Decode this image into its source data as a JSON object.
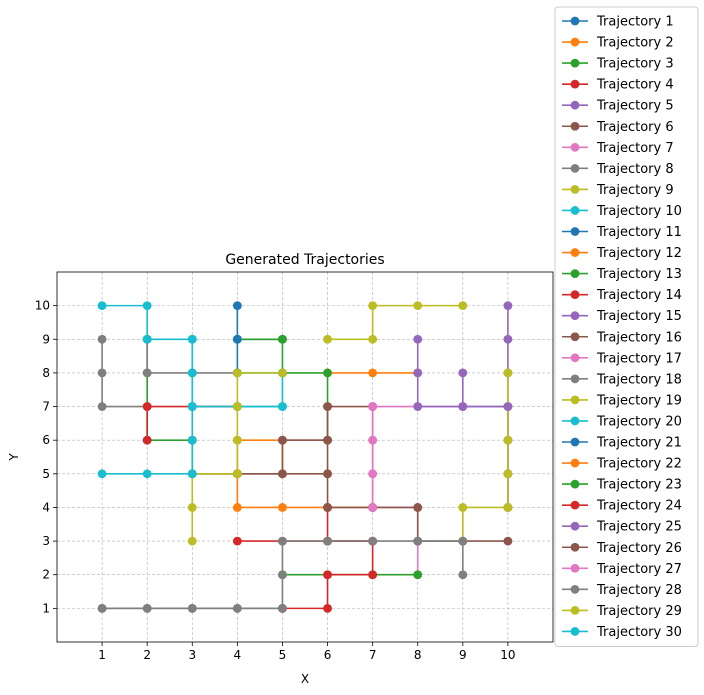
{
  "chart_data": {
    "type": "line",
    "title": "Generated Trajectories",
    "xlabel": "X",
    "ylabel": "Y",
    "xlim": [
      0,
      11
    ],
    "ylim": [
      0,
      11
    ],
    "xticks": [
      1,
      2,
      3,
      4,
      5,
      6,
      7,
      8,
      9,
      10
    ],
    "yticks": [
      1,
      2,
      3,
      4,
      5,
      6,
      7,
      8,
      9,
      10
    ],
    "xtick_labels": [
      "1",
      "2",
      "3",
      "4",
      "5",
      "6",
      "7",
      "8",
      "9",
      "10"
    ],
    "ytick_labels": [
      "1",
      "2",
      "3",
      "4",
      "5",
      "6",
      "7",
      "8",
      "9",
      "10"
    ],
    "grid": true,
    "grid_style": "dashed",
    "legend_position": "outside right",
    "series": [
      {
        "name": "Trajectory 1",
        "color": "#1f77b4",
        "points": [
          [
            5,
            1
          ],
          [
            4,
            1
          ],
          [
            3,
            1
          ],
          [
            2,
            1
          ],
          [
            1,
            1
          ]
        ]
      },
      {
        "name": "Trajectory 2",
        "color": "#ff7f0e",
        "points": [
          [
            4,
            5
          ],
          [
            4,
            6
          ],
          [
            5,
            6
          ],
          [
            5,
            5
          ]
        ]
      },
      {
        "name": "Trajectory 3",
        "color": "#2ca02c",
        "points": [
          [
            2,
            9
          ],
          [
            2,
            8
          ],
          [
            2,
            7
          ],
          [
            2,
            6
          ],
          [
            3,
            6
          ]
        ]
      },
      {
        "name": "Trajectory 4",
        "color": "#d62728",
        "points": [
          [
            4,
            3
          ],
          [
            5,
            3
          ],
          [
            6,
            3
          ],
          [
            7,
            3
          ]
        ]
      },
      {
        "name": "Trajectory 5",
        "color": "#9467bd",
        "points": [
          [
            9,
            8
          ],
          [
            9,
            7
          ],
          [
            10,
            7
          ],
          [
            10,
            6
          ],
          [
            10,
            5
          ],
          [
            10,
            4
          ]
        ]
      },
      {
        "name": "Trajectory 6",
        "color": "#8c564b",
        "points": [
          [
            3,
            5
          ],
          [
            4,
            5
          ],
          [
            5,
            5
          ],
          [
            6,
            5
          ]
        ]
      },
      {
        "name": "Trajectory 7",
        "color": "#e377c2",
        "points": [
          [
            7,
            7
          ],
          [
            8,
            7
          ],
          [
            9,
            7
          ]
        ]
      },
      {
        "name": "Trajectory 8",
        "color": "#7f7f7f",
        "points": [
          [
            1,
            9
          ],
          [
            1,
            8
          ],
          [
            1,
            7
          ],
          [
            2,
            7
          ]
        ]
      },
      {
        "name": "Trajectory 9",
        "color": "#bcbd22",
        "points": [
          [
            9,
            10
          ],
          [
            8,
            10
          ],
          [
            7,
            10
          ],
          [
            7,
            9
          ],
          [
            6,
            9
          ]
        ]
      },
      {
        "name": "Trajectory 10",
        "color": "#17becf",
        "points": [
          [
            3,
            7
          ],
          [
            4,
            7
          ],
          [
            5,
            7
          ],
          [
            5,
            8
          ],
          [
            4,
            8
          ]
        ]
      },
      {
        "name": "Trajectory 11",
        "color": "#1f77b4",
        "points": [
          [
            4,
            10
          ],
          [
            4,
            9
          ],
          [
            5,
            9
          ]
        ]
      },
      {
        "name": "Trajectory 12",
        "color": "#ff7f0e",
        "points": [
          [
            6,
            8
          ],
          [
            7,
            8
          ],
          [
            8,
            8
          ]
        ]
      },
      {
        "name": "Trajectory 13",
        "color": "#2ca02c",
        "points": [
          [
            4,
            9
          ],
          [
            5,
            9
          ],
          [
            5,
            8
          ],
          [
            6,
            8
          ],
          [
            6,
            7
          ],
          [
            6,
            6
          ]
        ]
      },
      {
        "name": "Trajectory 14",
        "color": "#d62728",
        "points": [
          [
            2,
            6
          ],
          [
            2,
            7
          ],
          [
            3,
            7
          ],
          [
            4,
            7
          ]
        ]
      },
      {
        "name": "Trajectory 15",
        "color": "#9467bd",
        "points": [
          [
            10,
            10
          ],
          [
            10,
            9
          ],
          [
            10,
            8
          ],
          [
            10,
            7
          ],
          [
            10,
            6
          ],
          [
            10,
            5
          ],
          [
            10,
            4
          ]
        ]
      },
      {
        "name": "Trajectory 16",
        "color": "#8c564b",
        "points": [
          [
            5,
            6
          ],
          [
            6,
            6
          ],
          [
            6,
            7
          ],
          [
            7,
            7
          ]
        ]
      },
      {
        "name": "Trajectory 17",
        "color": "#e377c2",
        "points": [
          [
            7,
            7
          ],
          [
            7,
            6
          ],
          [
            7,
            5
          ],
          [
            7,
            4
          ],
          [
            8,
            4
          ],
          [
            8,
            3
          ],
          [
            8,
            2
          ]
        ]
      },
      {
        "name": "Trajectory 18",
        "color": "#7f7f7f",
        "points": [
          [
            2,
            9
          ],
          [
            2,
            8
          ],
          [
            3,
            8
          ],
          [
            4,
            8
          ]
        ]
      },
      {
        "name": "Trajectory 19",
        "color": "#bcbd22",
        "points": [
          [
            10,
            8
          ],
          [
            10,
            7
          ],
          [
            10,
            6
          ],
          [
            10,
            5
          ],
          [
            10,
            4
          ],
          [
            9,
            4
          ],
          [
            9,
            3
          ]
        ]
      },
      {
        "name": "Trajectory 20",
        "color": "#17becf",
        "points": [
          [
            3,
            9
          ],
          [
            3,
            8
          ],
          [
            3,
            7
          ],
          [
            4,
            7
          ],
          [
            5,
            7
          ]
        ]
      },
      {
        "name": "Trajectory 21",
        "color": "#1f77b4",
        "points": [
          [
            4,
            9
          ],
          [
            4,
            8
          ]
        ]
      },
      {
        "name": "Trajectory 22",
        "color": "#ff7f0e",
        "points": [
          [
            4,
            5
          ],
          [
            4,
            4
          ],
          [
            5,
            4
          ],
          [
            6,
            4
          ],
          [
            7,
            4
          ]
        ]
      },
      {
        "name": "Trajectory 23",
        "color": "#2ca02c",
        "points": [
          [
            5,
            2
          ],
          [
            6,
            2
          ],
          [
            7,
            2
          ],
          [
            8,
            2
          ]
        ]
      },
      {
        "name": "Trajectory 24",
        "color": "#d62728",
        "points": [
          [
            5,
            1
          ],
          [
            6,
            1
          ],
          [
            6,
            2
          ],
          [
            7,
            2
          ],
          [
            7,
            3
          ],
          [
            6,
            3
          ],
          [
            6,
            4
          ]
        ]
      },
      {
        "name": "Trajectory 25",
        "color": "#9467bd",
        "points": [
          [
            8,
            9
          ],
          [
            8,
            8
          ],
          [
            8,
            7
          ],
          [
            9,
            7
          ],
          [
            10,
            7
          ]
        ]
      },
      {
        "name": "Trajectory 26",
        "color": "#8c564b",
        "points": [
          [
            3,
            6
          ],
          [
            3,
            5
          ],
          [
            4,
            5
          ],
          [
            5,
            5
          ],
          [
            5,
            6
          ],
          [
            6,
            6
          ],
          [
            6,
            5
          ],
          [
            6,
            4
          ],
          [
            7,
            4
          ],
          [
            8,
            4
          ],
          [
            8,
            3
          ],
          [
            9,
            3
          ],
          [
            10,
            3
          ]
        ]
      },
      {
        "name": "Trajectory 27",
        "color": "#e377c2",
        "points": [
          [
            7,
            7
          ],
          [
            7,
            6
          ],
          [
            7,
            5
          ],
          [
            7,
            4
          ]
        ]
      },
      {
        "name": "Trajectory 28",
        "color": "#7f7f7f",
        "points": [
          [
            1,
            1
          ],
          [
            2,
            1
          ],
          [
            3,
            1
          ],
          [
            4,
            1
          ],
          [
            5,
            1
          ],
          [
            5,
            2
          ],
          [
            5,
            3
          ],
          [
            6,
            3
          ],
          [
            7,
            3
          ],
          [
            8,
            3
          ],
          [
            9,
            3
          ],
          [
            9,
            2
          ]
        ]
      },
      {
        "name": "Trajectory 29",
        "color": "#bcbd22",
        "points": [
          [
            3,
            3
          ],
          [
            3,
            4
          ],
          [
            3,
            5
          ],
          [
            4,
            5
          ],
          [
            4,
            6
          ],
          [
            4,
            7
          ],
          [
            4,
            8
          ],
          [
            5,
            8
          ]
        ]
      },
      {
        "name": "Trajectory 30",
        "color": "#17becf",
        "points": [
          [
            1,
            5
          ],
          [
            2,
            5
          ],
          [
            3,
            5
          ],
          [
            3,
            6
          ],
          [
            3,
            7
          ],
          [
            3,
            8
          ],
          [
            3,
            9
          ],
          [
            2,
            9
          ],
          [
            2,
            10
          ],
          [
            1,
            10
          ]
        ]
      }
    ]
  }
}
